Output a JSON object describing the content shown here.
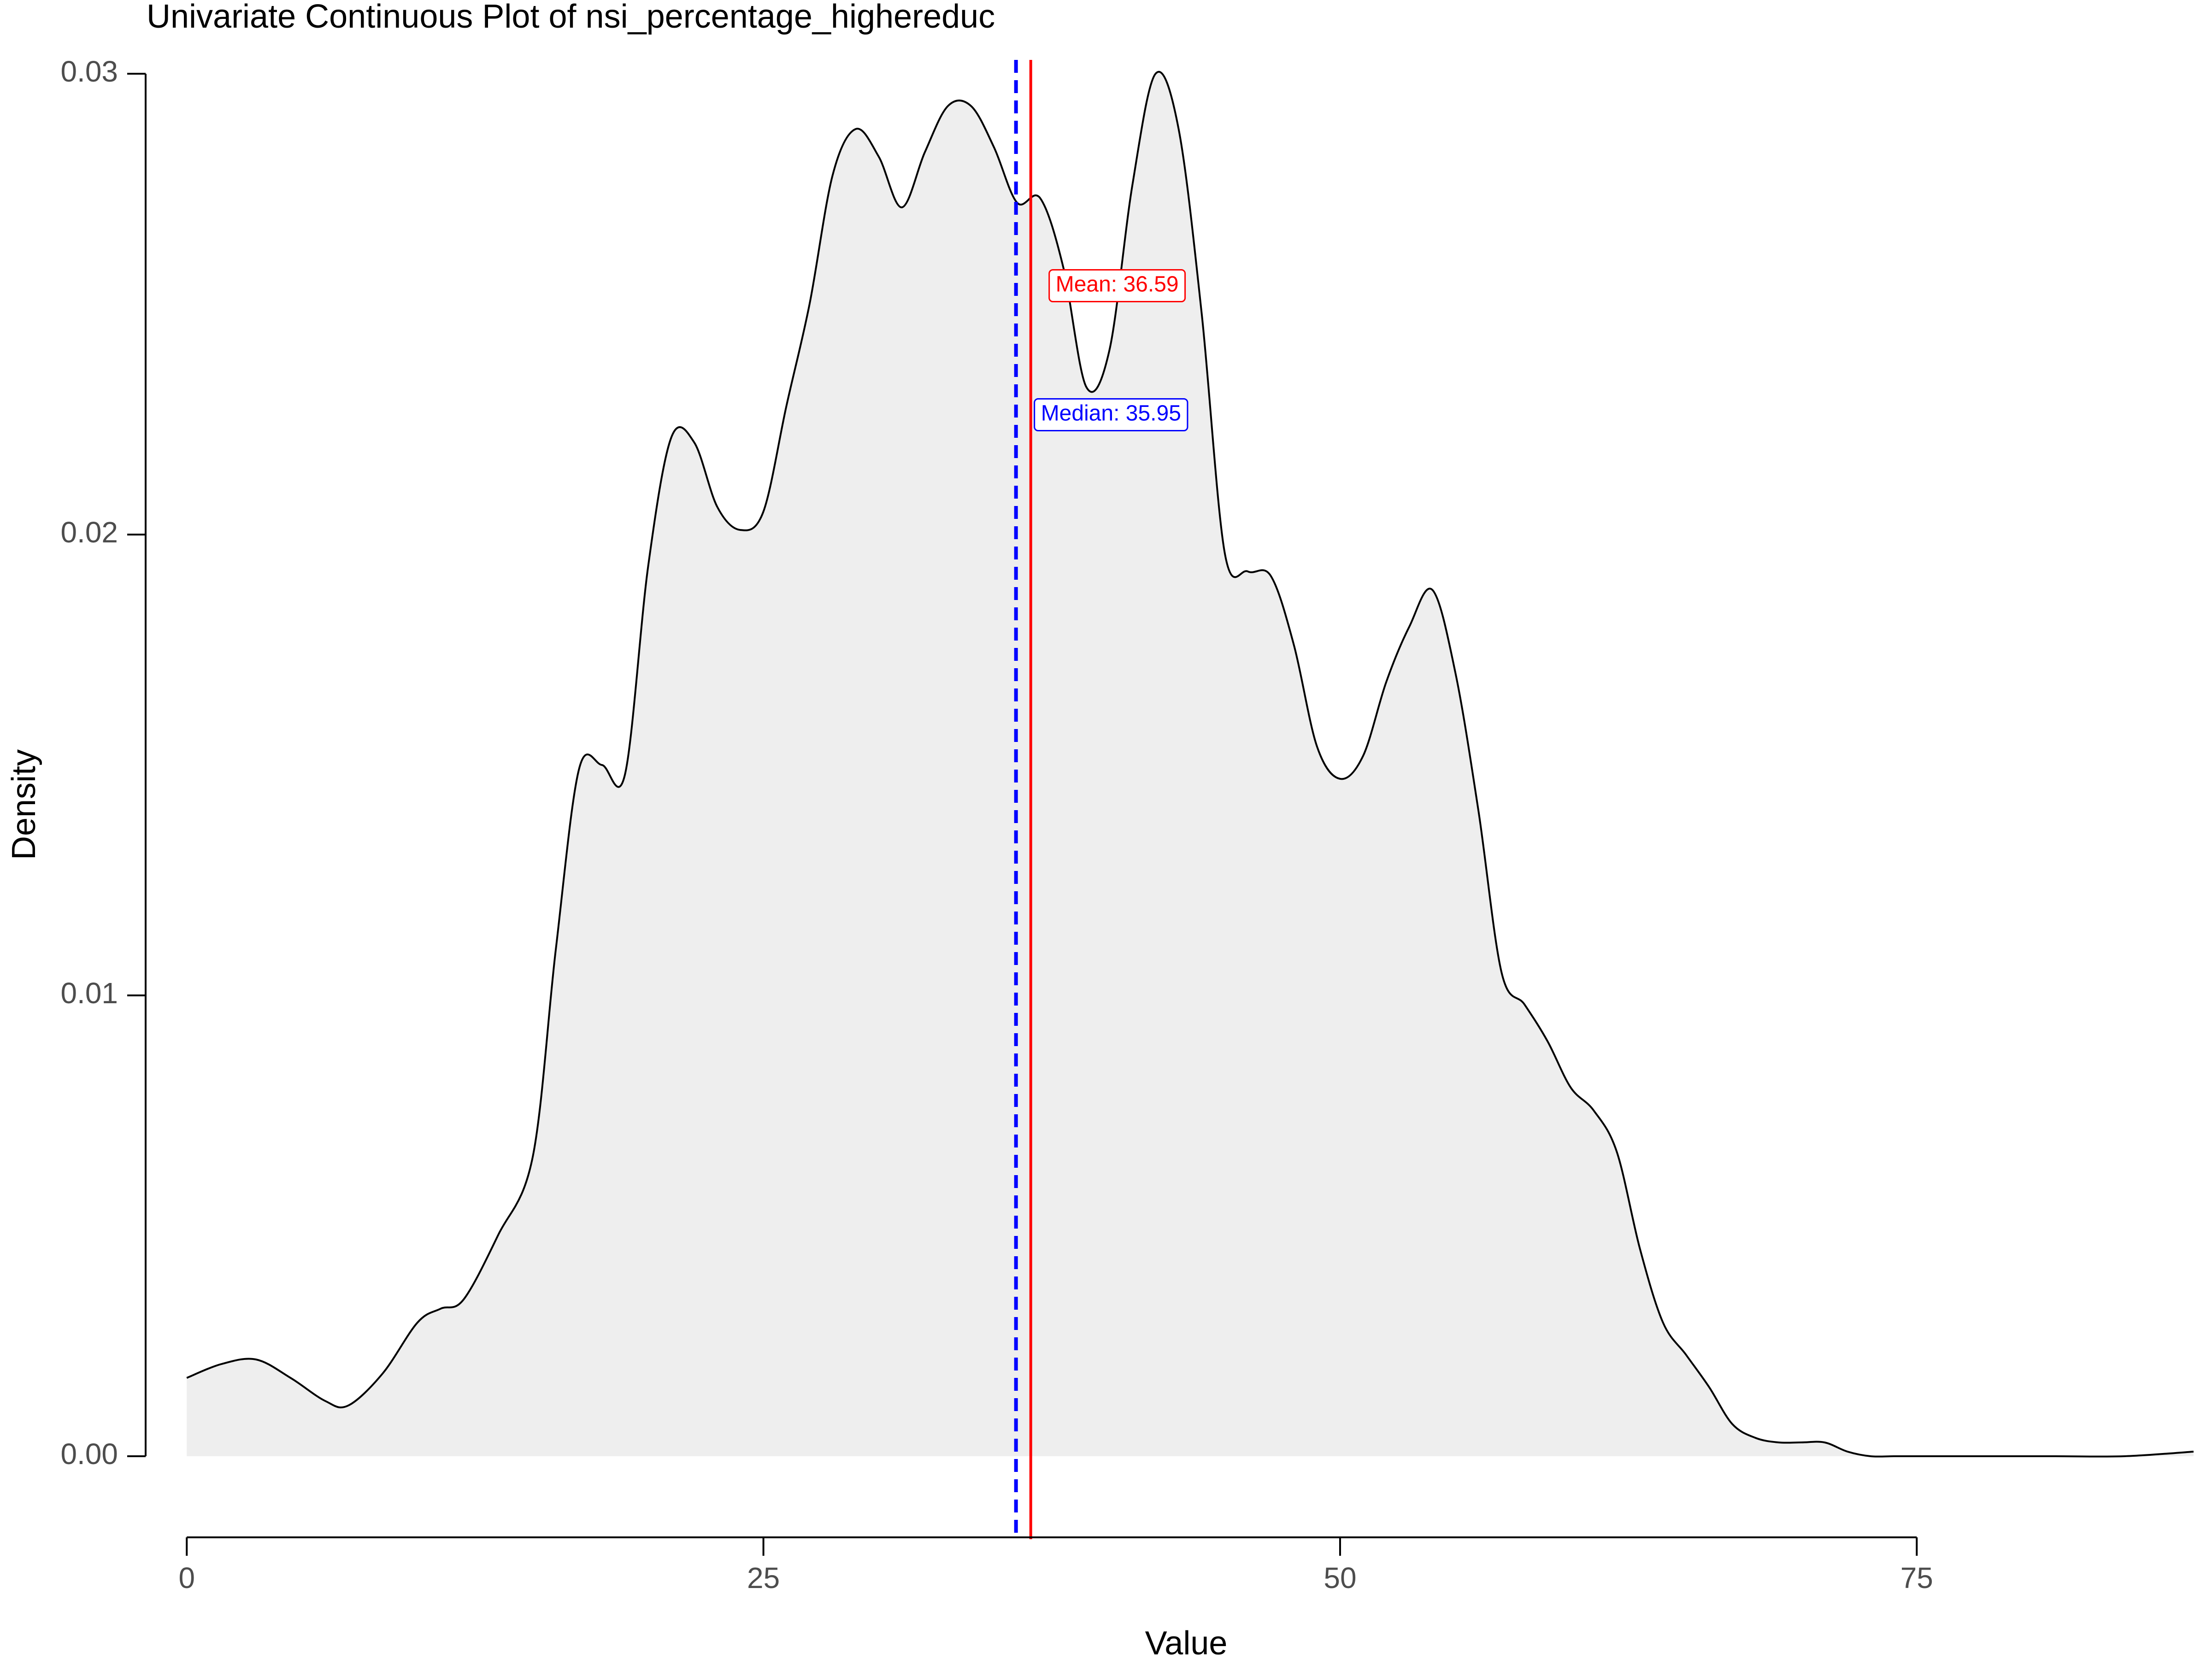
{
  "chart_data": {
    "type": "area",
    "title": "Univariate Continuous Plot of nsi_percentage_highereduc",
    "xlabel": "Value",
    "ylabel": "Density",
    "xlim": [
      -4.5,
      87.8
    ],
    "ylim": [
      -0.0015,
      0.0303
    ],
    "x_ticks": [
      0,
      25,
      50,
      75
    ],
    "y_ticks": [
      0.0,
      0.01,
      0.02,
      0.03
    ],
    "x_tick_labels": [
      "0",
      "25",
      "50",
      "75"
    ],
    "y_tick_labels": [
      "0.00",
      "0.01",
      "0.02",
      "0.03"
    ],
    "grid": false,
    "series": [
      {
        "fill": "#eeeeee",
        "line_color": "#000000",
        "x": [
          0,
          1.5,
          3,
          4.5,
          6,
          7,
          8.5,
          10,
          11,
          12,
          13.5,
          15,
          16,
          17,
          18,
          19,
          20,
          21,
          22,
          23,
          24,
          25,
          26,
          27,
          28,
          29,
          30,
          31,
          32,
          33,
          34,
          35,
          36,
          37,
          38,
          39,
          40,
          41,
          42,
          43,
          44,
          45,
          46,
          47,
          48,
          49,
          50,
          51,
          52,
          53,
          54,
          55,
          56,
          57,
          58,
          59,
          60,
          61,
          62,
          63,
          64,
          65,
          66,
          67,
          68,
          69,
          70,
          71,
          72,
          73,
          74,
          75,
          78,
          81,
          84,
          87
        ],
        "y": [
          0.0017,
          0.002,
          0.0021,
          0.0017,
          0.0012,
          0.0011,
          0.0018,
          0.0029,
          0.0032,
          0.0034,
          0.0048,
          0.0065,
          0.011,
          0.0149,
          0.015,
          0.0148,
          0.0193,
          0.0221,
          0.022,
          0.0206,
          0.0201,
          0.0205,
          0.0228,
          0.025,
          0.0278,
          0.0288,
          0.0282,
          0.0271,
          0.0283,
          0.0293,
          0.0293,
          0.0284,
          0.0272,
          0.0273,
          0.0258,
          0.0232,
          0.024,
          0.0276,
          0.03,
          0.0288,
          0.0248,
          0.0196,
          0.0192,
          0.0191,
          0.0176,
          0.0154,
          0.0147,
          0.0152,
          0.0168,
          0.018,
          0.0188,
          0.017,
          0.014,
          0.0105,
          0.0098,
          0.009,
          0.008,
          0.0075,
          0.0066,
          0.0045,
          0.0029,
          0.0022,
          0.0015,
          0.0007,
          0.0004,
          0.0003,
          0.0003,
          0.0003,
          0.0001,
          0.0,
          0.0,
          0.0,
          0.0,
          0.0,
          0.0,
          0.0001
        ]
      }
    ],
    "reference_lines": [
      {
        "name": "mean",
        "label": "Mean: 36.59",
        "value": 36.59,
        "color": "#ff0000",
        "style": "solid",
        "label_y": 0.0254
      },
      {
        "name": "median",
        "label": "Median: 35.95",
        "value": 35.95,
        "color": "#0000ff",
        "style": "dashed",
        "label_y": 0.0226
      }
    ]
  }
}
